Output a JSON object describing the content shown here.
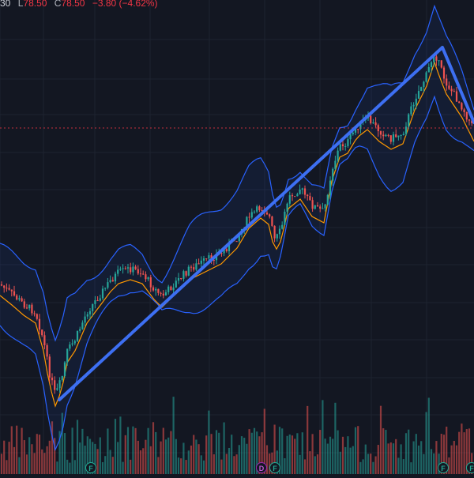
{
  "legend": {
    "open_partial": "30",
    "low_label": "L",
    "low_value": "78.50",
    "close_label": "C",
    "close_value": "78.50",
    "change": "−3.80 (−4.62%)"
  },
  "colors": {
    "background": "#131722",
    "grid": "#1e2330",
    "up": "#26a69a",
    "down": "#ef5350",
    "bollinger": "#2962ff",
    "basis": "#ff9800",
    "trendline": "#3d6ff2",
    "price_line": "#f23645"
  },
  "events": [
    {
      "letter": "F",
      "kind": "earnings"
    },
    {
      "letter": "D",
      "kind": "dividend"
    },
    {
      "letter": "F",
      "kind": "earnings"
    },
    {
      "letter": "F",
      "kind": "earnings"
    },
    {
      "letter": "F",
      "kind": "earnings"
    }
  ],
  "chart_data": {
    "type": "candlestick",
    "indicators": [
      "bollinger-bands",
      "volume"
    ],
    "trendline": {
      "from": "swing-low",
      "to": "swing-high"
    },
    "last_close": 78.5,
    "last_change": -3.8,
    "last_change_pct": -4.62,
    "grid": true
  }
}
